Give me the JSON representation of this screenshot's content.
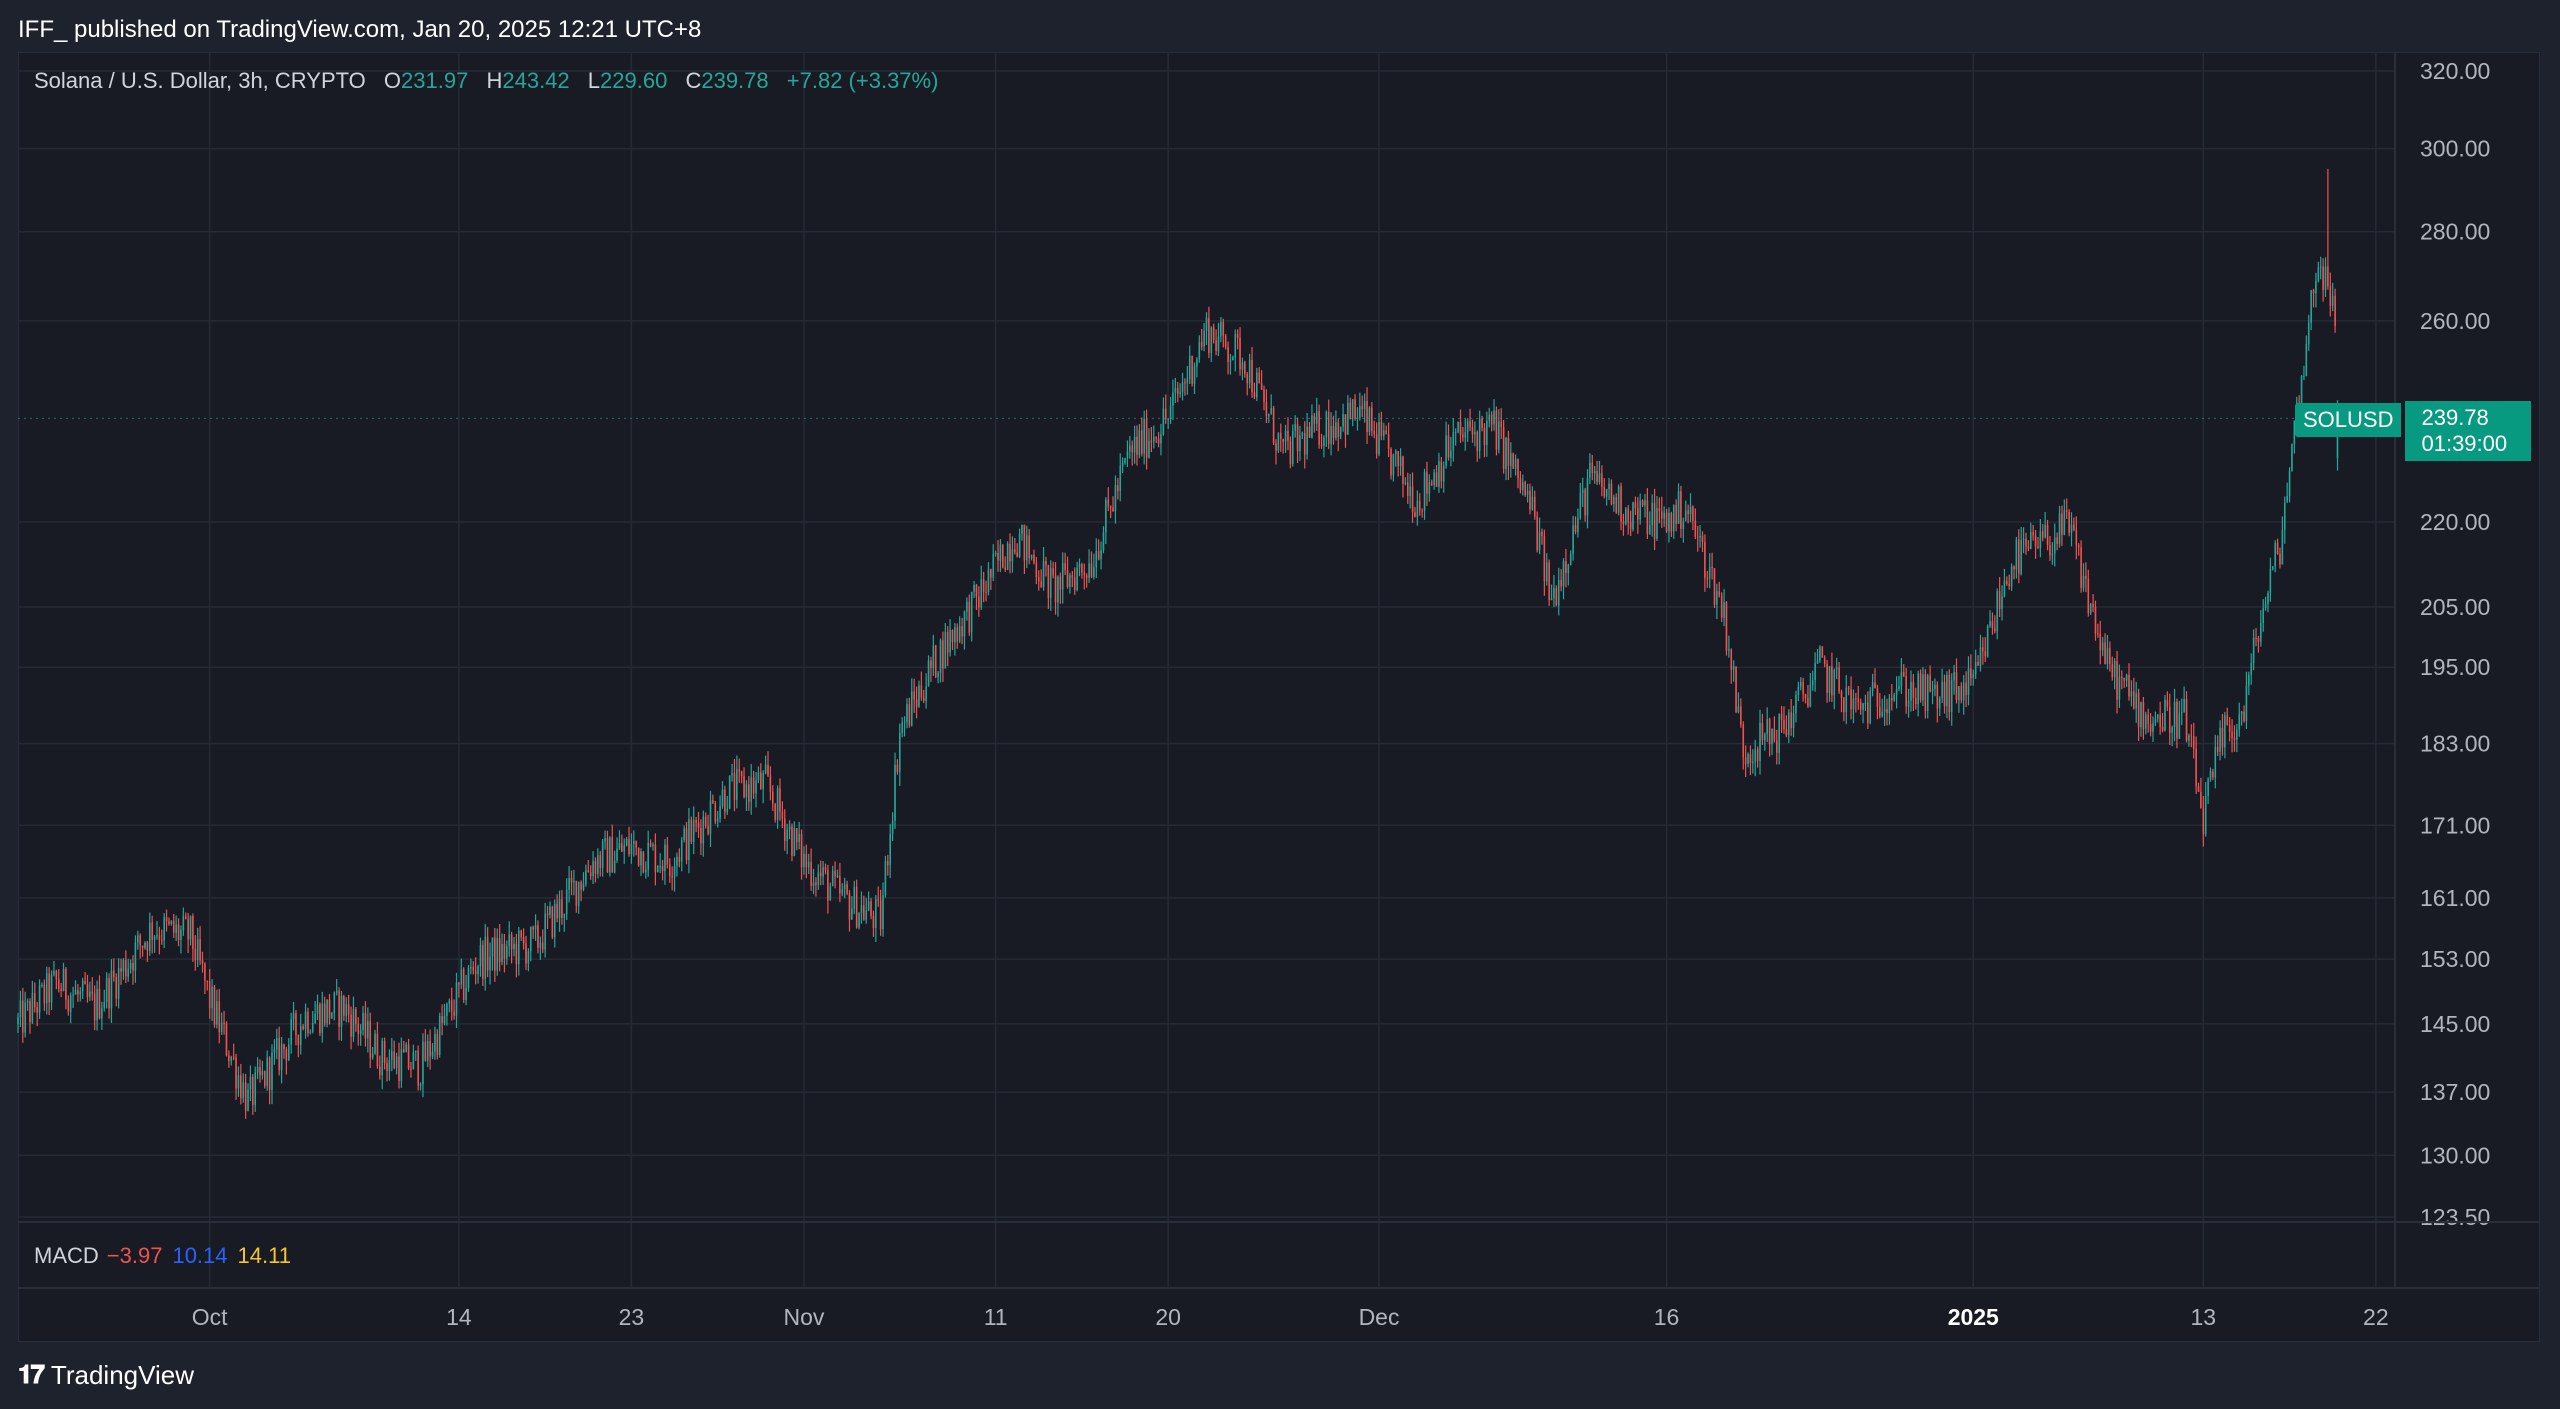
{
  "header": {
    "published": "IFF_ published on TradingView.com, Jan 20, 2025 12:21 UTC+8"
  },
  "legend": {
    "title": "Solana / U.S. Dollar, 3h, CRYPTO",
    "open_label": "O",
    "open": "231.97",
    "high_label": "H",
    "high": "243.42",
    "low_label": "L",
    "low": "229.60",
    "close_label": "C",
    "close": "239.78",
    "change": "+7.82 (+3.37%)"
  },
  "price_tag": {
    "symbol": "SOLUSD",
    "price": "239.78",
    "countdown": "01:39:00"
  },
  "macd": {
    "name": "MACD",
    "histogram": "−3.97",
    "macd": "10.14",
    "signal": "14.11"
  },
  "footer": {
    "brand": "TradingView"
  },
  "colors": {
    "up": "#26a69a",
    "down": "#ef5350",
    "background": "#181b24",
    "grid": "#262a35"
  },
  "chart_data": {
    "type": "candlestick",
    "symbol": "SOLUSD",
    "interval": "3h",
    "y_scale": "log",
    "ylim": [
      123.5,
      320.0
    ],
    "y_ticks": [
      "320.00",
      "300.00",
      "280.00",
      "260.00",
      "220.00",
      "205.00",
      "195.00",
      "183.00",
      "171.00",
      "161.00",
      "153.00",
      "145.00",
      "137.00",
      "130.00",
      "123.50"
    ],
    "x_ticks": [
      {
        "label": "Oct",
        "bold": false
      },
      {
        "label": "14",
        "bold": false
      },
      {
        "label": "23",
        "bold": false
      },
      {
        "label": "Nov",
        "bold": false
      },
      {
        "label": "11",
        "bold": false
      },
      {
        "label": "20",
        "bold": false
      },
      {
        "label": "Dec",
        "bold": false
      },
      {
        "label": "16",
        "bold": false
      },
      {
        "label": "2025",
        "bold": true
      },
      {
        "label": "13",
        "bold": false
      },
      {
        "label": "22",
        "bold": false
      }
    ],
    "x_range": [
      "2024-09-21",
      "2025-01-23"
    ],
    "price_path": [
      {
        "date": "2024-09-21",
        "close": 145
      },
      {
        "date": "2024-09-23",
        "close": 150
      },
      {
        "date": "2024-09-25",
        "close": 147
      },
      {
        "date": "2024-09-28",
        "close": 157
      },
      {
        "date": "2024-09-30",
        "close": 156
      },
      {
        "date": "2024-10-01",
        "close": 148
      },
      {
        "date": "2024-10-03",
        "close": 136
      },
      {
        "date": "2024-10-06",
        "close": 146
      },
      {
        "date": "2024-10-08",
        "close": 147
      },
      {
        "date": "2024-10-10",
        "close": 141
      },
      {
        "date": "2024-10-12",
        "close": 140
      },
      {
        "date": "2024-10-15",
        "close": 153
      },
      {
        "date": "2024-10-18",
        "close": 155
      },
      {
        "date": "2024-10-21",
        "close": 166
      },
      {
        "date": "2024-10-23",
        "close": 168
      },
      {
        "date": "2024-10-25",
        "close": 166
      },
      {
        "date": "2024-10-28",
        "close": 176
      },
      {
        "date": "2024-10-30",
        "close": 177
      },
      {
        "date": "2024-11-01",
        "close": 166
      },
      {
        "date": "2024-11-03",
        "close": 161
      },
      {
        "date": "2024-11-05",
        "close": 158
      },
      {
        "date": "2024-11-06",
        "close": 185
      },
      {
        "date": "2024-11-08",
        "close": 197
      },
      {
        "date": "2024-11-10",
        "close": 206
      },
      {
        "date": "2024-11-12",
        "close": 218
      },
      {
        "date": "2024-11-14",
        "close": 208
      },
      {
        "date": "2024-11-16",
        "close": 213
      },
      {
        "date": "2024-11-18",
        "close": 233
      },
      {
        "date": "2024-11-20",
        "close": 240
      },
      {
        "date": "2024-11-22",
        "close": 258
      },
      {
        "date": "2024-11-24",
        "close": 252
      },
      {
        "date": "2024-11-26",
        "close": 233
      },
      {
        "date": "2024-11-28",
        "close": 238
      },
      {
        "date": "2024-11-30",
        "close": 241
      },
      {
        "date": "2024-12-03",
        "close": 224
      },
      {
        "date": "2024-12-05",
        "close": 236
      },
      {
        "date": "2024-12-07",
        "close": 238
      },
      {
        "date": "2024-12-09",
        "close": 222
      },
      {
        "date": "2024-12-10",
        "close": 206
      },
      {
        "date": "2024-12-12",
        "close": 228
      },
      {
        "date": "2024-12-14",
        "close": 222
      },
      {
        "date": "2024-12-16",
        "close": 220
      },
      {
        "date": "2024-12-17",
        "close": 223
      },
      {
        "date": "2024-12-19",
        "close": 204
      },
      {
        "date": "2024-12-20",
        "close": 182
      },
      {
        "date": "2024-12-22",
        "close": 185
      },
      {
        "date": "2024-12-24",
        "close": 195
      },
      {
        "date": "2024-12-26",
        "close": 188
      },
      {
        "date": "2024-12-28",
        "close": 192
      },
      {
        "date": "2024-12-30",
        "close": 190
      },
      {
        "date": "2025-01-01",
        "close": 192
      },
      {
        "date": "2025-01-03",
        "close": 213
      },
      {
        "date": "2025-01-05",
        "close": 217
      },
      {
        "date": "2025-01-06",
        "close": 219
      },
      {
        "date": "2025-01-08",
        "close": 195
      },
      {
        "date": "2025-01-10",
        "close": 187
      },
      {
        "date": "2025-01-12",
        "close": 187
      },
      {
        "date": "2025-01-13",
        "close": 172
      },
      {
        "date": "2025-01-14",
        "close": 184
      },
      {
        "date": "2025-01-15",
        "close": 187
      },
      {
        "date": "2025-01-16",
        "close": 203
      },
      {
        "date": "2025-01-17",
        "close": 216
      },
      {
        "date": "2025-01-18",
        "close": 245
      },
      {
        "date": "2025-01-19",
        "close": 275
      },
      {
        "date": "2025-01-19T21:00",
        "close": 260
      },
      {
        "date": "2025-01-20",
        "close": 239.78
      }
    ],
    "annotations": {
      "swing_high": {
        "date": "2025-01-19T12:00",
        "value": 295
      },
      "swing_low": {
        "date": "2025-01-13",
        "value": 168
      }
    }
  }
}
